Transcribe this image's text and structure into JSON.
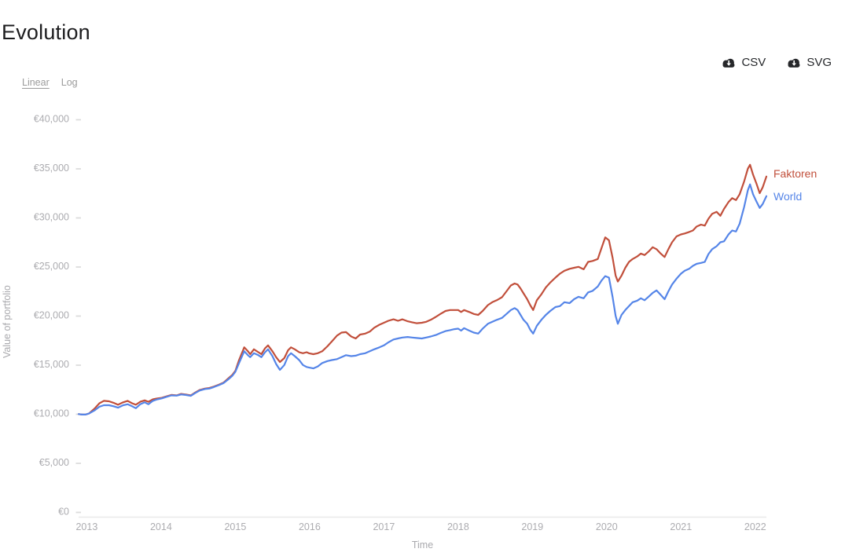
{
  "page": {
    "title": "Evolution"
  },
  "toolbar": {
    "csv_label": "CSV",
    "svg_label": "SVG",
    "icon": "cloud-download-icon",
    "icon_color": "#26272a"
  },
  "scale_toggle": {
    "linear": "Linear",
    "log": "Log",
    "active": "Linear"
  },
  "chart_data": {
    "type": "line",
    "title": "Evolution",
    "xlabel": "Time",
    "ylabel": "Value of portfolio",
    "grid": false,
    "legend_position": "line-end-labels-right",
    "xlim": [
      2012.89,
      2022.15
    ],
    "ylim": [
      0,
      40000
    ],
    "x_tick_values": [
      2013,
      2014,
      2015,
      2016,
      2017,
      2018,
      2019,
      2020,
      2021,
      2022
    ],
    "x_tick_labels": [
      "2013",
      "2014",
      "2015",
      "2016",
      "2017",
      "2018",
      "2019",
      "2020",
      "2021",
      "2022"
    ],
    "y_tick_values": [
      0,
      5000,
      10000,
      15000,
      20000,
      25000,
      30000,
      35000,
      40000
    ],
    "y_tick_labels": [
      "€0",
      "€5,000",
      "€10,000",
      "€15,000",
      "€20,000",
      "€25,000",
      "€30,000",
      "€35,000",
      "€40,000"
    ],
    "x": [
      2012.89,
      2012.94,
      2012.98,
      2013.03,
      2013.11,
      2013.17,
      2013.23,
      2013.3,
      2013.36,
      2013.42,
      2013.49,
      2013.55,
      2013.61,
      2013.66,
      2013.72,
      2013.78,
      2013.83,
      2013.89,
      2013.95,
      2014.01,
      2014.07,
      2014.14,
      2014.21,
      2014.27,
      2014.33,
      2014.4,
      2014.46,
      2014.52,
      2014.59,
      2014.65,
      2014.71,
      2014.78,
      2014.84,
      2014.9,
      2014.96,
      2015.0,
      2015.05,
      2015.12,
      2015.17,
      2015.2,
      2015.25,
      2015.31,
      2015.35,
      2015.4,
      2015.44,
      2015.5,
      2015.55,
      2015.6,
      2015.66,
      2015.71,
      2015.75,
      2015.8,
      2015.86,
      2015.91,
      2015.96,
      2015.99,
      2016.05,
      2016.11,
      2016.17,
      2016.24,
      2016.3,
      2016.37,
      2016.43,
      2016.49,
      2016.56,
      2016.62,
      2016.68,
      2016.75,
      2016.81,
      2016.87,
      2016.94,
      2017.0,
      2017.06,
      2017.13,
      2017.19,
      2017.25,
      2017.32,
      2017.38,
      2017.44,
      2017.51,
      2017.57,
      2017.63,
      2017.7,
      2017.76,
      2017.83,
      2017.89,
      2017.95,
      2018.0,
      2018.04,
      2018.08,
      2018.15,
      2018.21,
      2018.27,
      2018.33,
      2018.4,
      2018.46,
      2018.52,
      2018.59,
      2018.65,
      2018.71,
      2018.76,
      2018.8,
      2018.84,
      2018.88,
      2018.93,
      2018.97,
      2019.01,
      2019.06,
      2019.12,
      2019.18,
      2019.24,
      2019.31,
      2019.37,
      2019.43,
      2019.5,
      2019.56,
      2019.62,
      2019.69,
      2019.75,
      2019.81,
      2019.88,
      2019.93,
      2019.98,
      2020.03,
      2020.08,
      2020.12,
      2020.15,
      2020.2,
      2020.25,
      2020.3,
      2020.35,
      2020.41,
      2020.46,
      2020.51,
      2020.57,
      2020.62,
      2020.67,
      2020.72,
      2020.78,
      2020.83,
      2020.88,
      2020.94,
      2021.0,
      2021.05,
      2021.11,
      2021.16,
      2021.21,
      2021.27,
      2021.32,
      2021.37,
      2021.42,
      2021.48,
      2021.53,
      2021.58,
      2021.64,
      2021.69,
      2021.74,
      2021.79,
      2021.85,
      2021.9,
      2021.93,
      2021.97,
      2022.02,
      2022.06,
      2022.1,
      2022.15
    ],
    "series": [
      {
        "name": "Faktoren",
        "color": "#c14f3b",
        "values": [
          9900,
          9850,
          9850,
          9950,
          10500,
          11000,
          11250,
          11200,
          11050,
          10850,
          11100,
          11250,
          11000,
          10850,
          11150,
          11300,
          11150,
          11400,
          11500,
          11550,
          11700,
          11850,
          11800,
          11950,
          11900,
          11800,
          12100,
          12350,
          12500,
          12550,
          12700,
          12900,
          13100,
          13500,
          13900,
          14300,
          15400,
          16700,
          16300,
          16000,
          16500,
          16200,
          16000,
          16600,
          16900,
          16300,
          15700,
          15200,
          15600,
          16400,
          16700,
          16500,
          16200,
          16100,
          16200,
          16100,
          16000,
          16100,
          16300,
          16800,
          17300,
          17900,
          18200,
          18250,
          17800,
          17600,
          18000,
          18100,
          18300,
          18700,
          19000,
          19200,
          19400,
          19550,
          19400,
          19550,
          19350,
          19250,
          19150,
          19200,
          19300,
          19500,
          19800,
          20100,
          20400,
          20500,
          20500,
          20500,
          20300,
          20500,
          20300,
          20100,
          20000,
          20400,
          21000,
          21300,
          21500,
          21800,
          22400,
          23000,
          23200,
          23100,
          22700,
          22200,
          21600,
          21000,
          20500,
          21500,
          22100,
          22800,
          23300,
          23800,
          24200,
          24500,
          24700,
          24800,
          24900,
          24650,
          25400,
          25500,
          25700,
          26800,
          27900,
          27600,
          25800,
          24000,
          23400,
          24000,
          24800,
          25400,
          25700,
          25950,
          26250,
          26100,
          26500,
          26900,
          26700,
          26300,
          25900,
          26700,
          27400,
          28000,
          28200,
          28300,
          28450,
          28600,
          29000,
          29200,
          29100,
          29800,
          30300,
          30500,
          30100,
          30800,
          31500,
          31900,
          31700,
          32300,
          33600,
          34900,
          35300,
          34300,
          33300,
          32400,
          33000,
          34100
        ]
      },
      {
        "name": "World",
        "color": "#5585e8",
        "values": [
          9900,
          9850,
          9850,
          9950,
          10300,
          10650,
          10800,
          10800,
          10700,
          10550,
          10800,
          10900,
          10700,
          10500,
          10900,
          11100,
          10900,
          11250,
          11400,
          11500,
          11650,
          11800,
          11780,
          11900,
          11850,
          11750,
          12050,
          12300,
          12450,
          12500,
          12650,
          12850,
          13050,
          13400,
          13800,
          14200,
          15100,
          16300,
          15900,
          15700,
          16100,
          15900,
          15700,
          16200,
          16500,
          15800,
          15000,
          14400,
          14900,
          15800,
          16100,
          15800,
          15400,
          14900,
          14700,
          14650,
          14550,
          14750,
          15100,
          15300,
          15400,
          15500,
          15700,
          15900,
          15800,
          15850,
          16000,
          16100,
          16300,
          16500,
          16700,
          16900,
          17200,
          17500,
          17600,
          17700,
          17750,
          17700,
          17650,
          17600,
          17700,
          17800,
          17950,
          18150,
          18350,
          18450,
          18550,
          18600,
          18400,
          18650,
          18400,
          18200,
          18100,
          18600,
          19100,
          19300,
          19500,
          19700,
          20100,
          20500,
          20700,
          20500,
          20000,
          19500,
          19100,
          18500,
          18100,
          18900,
          19500,
          20000,
          20400,
          20800,
          20900,
          21300,
          21200,
          21600,
          21850,
          21700,
          22300,
          22450,
          22900,
          23500,
          23950,
          23800,
          21800,
          19900,
          19100,
          20000,
          20500,
          20900,
          21300,
          21450,
          21700,
          21500,
          21900,
          22250,
          22500,
          22100,
          21600,
          22400,
          23100,
          23700,
          24200,
          24500,
          24700,
          25000,
          25200,
          25300,
          25400,
          26200,
          26700,
          27000,
          27400,
          27500,
          28200,
          28600,
          28500,
          29300,
          31000,
          32700,
          33300,
          32300,
          31500,
          30900,
          31300,
          32100
        ]
      }
    ]
  }
}
